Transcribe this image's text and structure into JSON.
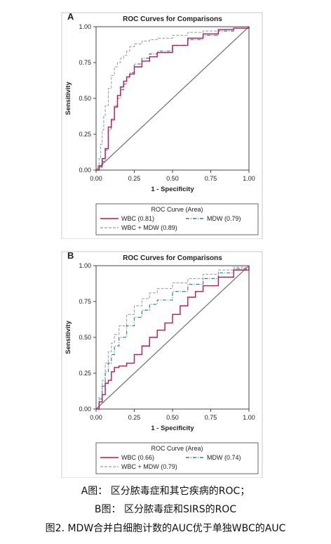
{
  "figure": {
    "caption_lines": [
      "A图： 区分脓毒症和其它疾病的ROC；",
      "B图： 区分脓毒症和SIRS的ROC",
      "图2. MDW合并白细胞计数的AUC优于单独WBC的AUC"
    ]
  },
  "colors": {
    "wbc": "#c0154f",
    "mdw": "#2e7ea7",
    "combo": "#9a9a9a",
    "diagonal": "#777777"
  },
  "chart_data": [
    {
      "type": "line",
      "panel_label": "A",
      "title": "ROC Curves for Comparisons",
      "xlabel": "1 - Specificity",
      "ylabel": "Sensitivity",
      "xlim": [
        0,
        1
      ],
      "ylim": [
        0,
        1
      ],
      "xticks": [
        "0.00",
        "0.25",
        "0.50",
        "0.75",
        "1.00"
      ],
      "yticks": [
        "0.00",
        "0.25",
        "0.50",
        "0.75",
        "1.00"
      ],
      "legend_title": "ROC Curve (Area)",
      "legend_placement": "below",
      "reference_line": true,
      "series": [
        {
          "name": "WBC",
          "area": "(0.81)",
          "x": [
            0,
            0.02,
            0.04,
            0.06,
            0.08,
            0.1,
            0.12,
            0.14,
            0.16,
            0.18,
            0.2,
            0.22,
            0.25,
            0.3,
            0.35,
            0.4,
            0.5,
            0.6,
            0.7,
            0.8,
            0.9,
            1.0
          ],
          "y": [
            0,
            0.03,
            0.08,
            0.15,
            0.3,
            0.35,
            0.44,
            0.52,
            0.58,
            0.62,
            0.65,
            0.67,
            0.72,
            0.76,
            0.79,
            0.82,
            0.87,
            0.92,
            0.95,
            0.98,
            0.99,
            1.0
          ]
        },
        {
          "name": "MDW",
          "area": "(0.79)",
          "x": [
            0,
            0.02,
            0.04,
            0.06,
            0.08,
            0.1,
            0.12,
            0.14,
            0.16,
            0.18,
            0.2,
            0.22,
            0.25,
            0.3,
            0.35,
            0.4,
            0.5,
            0.6,
            0.7,
            0.8,
            0.9,
            1.0
          ],
          "y": [
            0,
            0.02,
            0.06,
            0.14,
            0.28,
            0.36,
            0.45,
            0.5,
            0.56,
            0.6,
            0.64,
            0.68,
            0.74,
            0.78,
            0.81,
            0.83,
            0.87,
            0.91,
            0.94,
            0.97,
            0.99,
            1.0
          ]
        },
        {
          "name": "WBC + MDW",
          "area": "(0.89)",
          "x": [
            0,
            0.01,
            0.02,
            0.03,
            0.04,
            0.05,
            0.06,
            0.08,
            0.1,
            0.12,
            0.14,
            0.16,
            0.18,
            0.2,
            0.22,
            0.25,
            0.3,
            0.35,
            0.4,
            0.5,
            0.6,
            0.7,
            0.8,
            0.9,
            1.0
          ],
          "y": [
            0,
            0.03,
            0.08,
            0.18,
            0.28,
            0.38,
            0.45,
            0.57,
            0.66,
            0.72,
            0.75,
            0.78,
            0.8,
            0.83,
            0.86,
            0.88,
            0.9,
            0.91,
            0.92,
            0.94,
            0.96,
            0.97,
            0.98,
            0.99,
            1.0
          ]
        }
      ]
    },
    {
      "type": "line",
      "panel_label": "B",
      "title": "ROC Curves for Comparisons",
      "xlabel": "1 - Specificity",
      "ylabel": "Sensitivity",
      "xlim": [
        0,
        1
      ],
      "ylim": [
        0,
        1
      ],
      "xticks": [
        "0.00",
        "0.25",
        "0.50",
        "0.75",
        "1.00"
      ],
      "yticks": [
        "0.00",
        "0.25",
        "0.50",
        "0.75",
        "1.00"
      ],
      "legend_title": "ROC Curve (Area)",
      "legend_placement": "below",
      "reference_line": true,
      "series": [
        {
          "name": "WBC",
          "area": "(0.66)",
          "x": [
            0,
            0.02,
            0.04,
            0.06,
            0.08,
            0.1,
            0.12,
            0.15,
            0.2,
            0.25,
            0.3,
            0.35,
            0.4,
            0.45,
            0.5,
            0.55,
            0.6,
            0.65,
            0.7,
            0.8,
            0.9,
            1.0
          ],
          "y": [
            0,
            0.05,
            0.1,
            0.18,
            0.2,
            0.26,
            0.29,
            0.3,
            0.32,
            0.38,
            0.44,
            0.5,
            0.55,
            0.6,
            0.66,
            0.72,
            0.78,
            0.82,
            0.86,
            0.92,
            0.97,
            1.0
          ]
        },
        {
          "name": "MDW",
          "area": "(0.74)",
          "x": [
            0,
            0.02,
            0.04,
            0.06,
            0.08,
            0.1,
            0.12,
            0.15,
            0.2,
            0.25,
            0.3,
            0.35,
            0.4,
            0.5,
            0.6,
            0.7,
            0.8,
            0.9,
            1.0
          ],
          "y": [
            0,
            0.07,
            0.16,
            0.26,
            0.32,
            0.38,
            0.44,
            0.5,
            0.58,
            0.64,
            0.69,
            0.73,
            0.76,
            0.82,
            0.87,
            0.91,
            0.95,
            0.98,
            1.0
          ]
        },
        {
          "name": "WBC + MDW",
          "area": "(0.79)",
          "x": [
            0,
            0.02,
            0.04,
            0.06,
            0.08,
            0.1,
            0.12,
            0.15,
            0.2,
            0.25,
            0.3,
            0.35,
            0.4,
            0.5,
            0.6,
            0.7,
            0.8,
            0.9,
            1.0
          ],
          "y": [
            0,
            0.08,
            0.2,
            0.32,
            0.4,
            0.46,
            0.52,
            0.58,
            0.66,
            0.72,
            0.77,
            0.81,
            0.84,
            0.88,
            0.91,
            0.94,
            0.97,
            0.99,
            1.0
          ]
        }
      ]
    }
  ]
}
